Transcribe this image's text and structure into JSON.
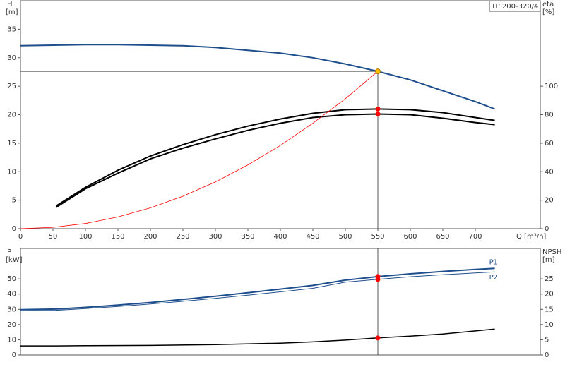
{
  "chart_data": [
    {
      "type": "line",
      "title": "TP 200-320/4",
      "ylabel": "H",
      "yunit": "[m]",
      "y2label": "eta",
      "y2unit": "[%]",
      "xlabel": "Q [m³/h]",
      "xlim": [
        0,
        800
      ],
      "xticks": [
        0,
        50,
        100,
        150,
        200,
        250,
        300,
        350,
        400,
        450,
        500,
        550,
        600,
        650,
        700
      ],
      "ylim": [
        0,
        40
      ],
      "yticks": [
        0,
        5,
        10,
        15,
        20,
        25,
        30,
        35
      ],
      "y2lim": [
        0,
        160
      ],
      "y2ticks": [
        0,
        20,
        40,
        60,
        80,
        100
      ],
      "duty_x": 550,
      "series": [
        {
          "color": "#1f4e8c",
          "width": 2,
          "marker_color": "#ffc000",
          "x": [
            0,
            50,
            100,
            150,
            200,
            250,
            300,
            350,
            400,
            450,
            500,
            550,
            600,
            650,
            700,
            730
          ],
          "values": [
            32.1,
            32.2,
            32.3,
            32.3,
            32.2,
            32.1,
            31.8,
            31.3,
            30.8,
            30,
            28.9,
            27.6,
            26.1,
            24.2,
            22.3,
            21
          ]
        },
        {
          "color": "#000000",
          "width": 2,
          "axis": "y2",
          "marker_color": "#ff0000",
          "x": [
            55,
            100,
            150,
            200,
            250,
            300,
            350,
            400,
            450,
            500,
            550,
            600,
            650,
            700,
            730
          ],
          "values": [
            16,
            29,
            41,
            51,
            59,
            66,
            72,
            77,
            81,
            83.5,
            84,
            83.5,
            81.5,
            78,
            76
          ]
        },
        {
          "color": "#000000",
          "width": 2,
          "axis": "y2",
          "marker_color": "#ff0000",
          "x": [
            55,
            100,
            150,
            200,
            250,
            300,
            350,
            400,
            450,
            500,
            550,
            600,
            650,
            700,
            730
          ],
          "values": [
            15,
            28,
            39,
            49,
            56.5,
            63,
            69,
            74,
            78,
            80,
            80.5,
            80,
            77.5,
            74.5,
            73
          ]
        },
        {
          "color": "#ff0000",
          "width": 0.8,
          "x": [
            0,
            50,
            100,
            150,
            200,
            250,
            300,
            350,
            400,
            450,
            500,
            550
          ],
          "values": [
            0,
            0.23,
            0.91,
            2.05,
            3.65,
            5.7,
            8.2,
            11.2,
            14.6,
            18.5,
            22.8,
            27.6
          ]
        }
      ]
    },
    {
      "type": "line",
      "ylabel": "P",
      "yunit": "[kW]",
      "y2label": "NPSH",
      "y2unit": "[m]",
      "xlim": [
        0,
        800
      ],
      "ylim": [
        0,
        70
      ],
      "yticks": [
        0,
        10,
        20,
        30,
        40,
        50
      ],
      "y2lim": [
        0,
        35
      ],
      "y2ticks": [
        0,
        5,
        10,
        15,
        20,
        25
      ],
      "duty_x": 550,
      "series": [
        {
          "name": "P1",
          "color": "#1f4e8c",
          "width": 2,
          "marker_color": "#ff0000",
          "x": [
            0,
            55,
            100,
            150,
            200,
            250,
            300,
            350,
            400,
            450,
            500,
            550,
            600,
            650,
            700,
            730
          ],
          "values": [
            29.8,
            30.2,
            31.3,
            32.8,
            34.5,
            36.5,
            38.6,
            40.9,
            43.3,
            45.7,
            49.2,
            51.5,
            53.3,
            54.9,
            56.2,
            56.9
          ]
        },
        {
          "name": "P2",
          "color": "#1f4e8c",
          "width": 1,
          "marker_color": "#ff0000",
          "x": [
            0,
            55,
            100,
            150,
            200,
            250,
            300,
            350,
            400,
            450,
            500,
            550,
            600,
            650,
            700,
            730
          ],
          "values": [
            29,
            29.4,
            30.5,
            31.9,
            33.5,
            35.3,
            37.2,
            39.3,
            41.5,
            43.8,
            47.9,
            49.7,
            51.4,
            52.7,
            53.9,
            54.6
          ]
        },
        {
          "color": "#000000",
          "width": 1.5,
          "axis": "y2",
          "marker_color": "#ff0000",
          "x": [
            0,
            55,
            100,
            200,
            300,
            400,
            450,
            500,
            550,
            600,
            650,
            700,
            730
          ],
          "values": [
            3,
            3,
            3.05,
            3.15,
            3.4,
            3.9,
            4.3,
            4.9,
            5.6,
            6.2,
            6.9,
            7.9,
            8.5
          ]
        }
      ]
    }
  ]
}
